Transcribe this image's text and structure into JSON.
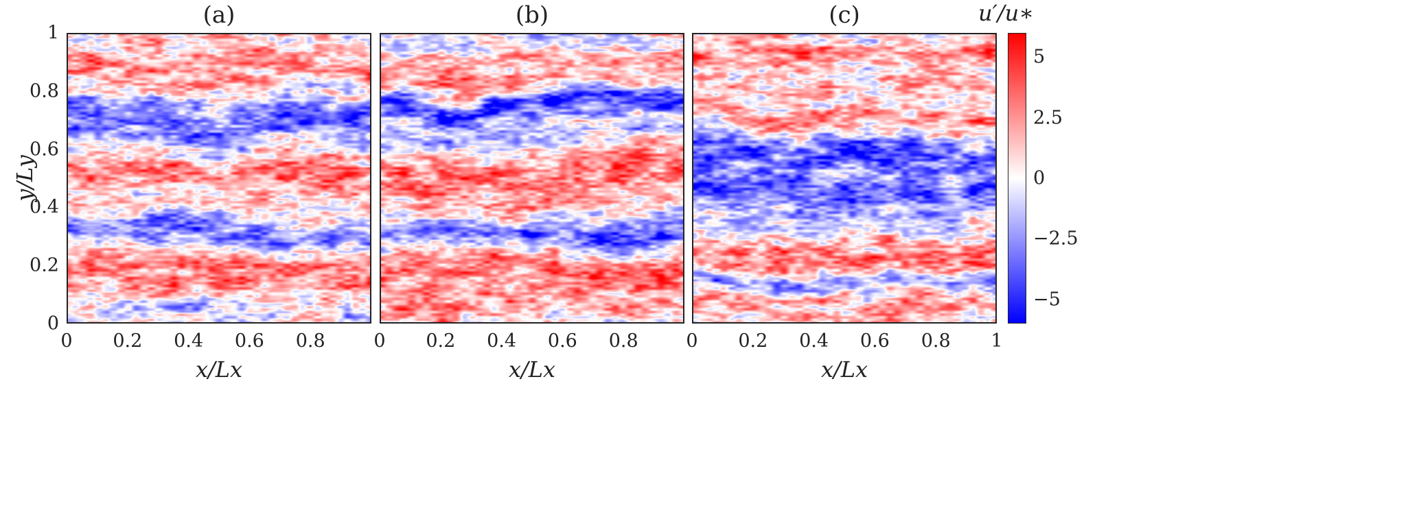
{
  "chart_data": {
    "type": "heatmap",
    "colorbar": {
      "label": "u′/u∗",
      "range": [
        -6,
        6
      ],
      "ticks": [
        5,
        2.5,
        0,
        -2.5,
        -5
      ],
      "tick_labels": [
        "5",
        "2.5",
        "0",
        "−2.5",
        "−5"
      ],
      "colors": {
        "low": "#0000ff",
        "mid": "#ffffff",
        "high": "#ff0000"
      }
    },
    "ylabel": "y/Ly",
    "y_ticks": [
      "0",
      "0.2",
      "0.4",
      "0.6",
      "0.8",
      "1"
    ],
    "panels": [
      {
        "title": "(a)",
        "xlabel": "x/Lx",
        "x_ticks": [
          "0",
          "0.2",
          "0.4",
          "0.6",
          "0.8"
        ],
        "xlim": [
          0,
          1
        ],
        "ylim": [
          0,
          1
        ],
        "streaks": [
          {
            "y": 0.9,
            "w": 0.08,
            "v": 2.5
          },
          {
            "y": 0.7,
            "w": 0.07,
            "v": -3.5
          },
          {
            "y": 0.5,
            "w": 0.08,
            "v": 3
          },
          {
            "y": 0.31,
            "w": 0.06,
            "v": -3
          },
          {
            "y": 0.16,
            "w": 0.09,
            "v": 3
          },
          {
            "y": 0.04,
            "w": 0.03,
            "v": -1.5
          }
        ]
      },
      {
        "title": "(b)",
        "xlabel": "x/Lx",
        "x_ticks": [
          "0",
          "0.2",
          "0.4",
          "0.6",
          "0.8"
        ],
        "xlim": [
          0,
          1
        ],
        "ylim": [
          0,
          1
        ],
        "streaks": [
          {
            "y": 0.88,
            "w": 0.07,
            "v": 2.5
          },
          {
            "y": 0.75,
            "w": 0.04,
            "v": -5
          },
          {
            "y": 0.65,
            "w": 0.04,
            "v": -1.5
          },
          {
            "y": 0.51,
            "w": 0.09,
            "v": 3.2
          },
          {
            "y": 0.31,
            "w": 0.05,
            "v": -4
          },
          {
            "y": 0.17,
            "w": 0.07,
            "v": 3
          },
          {
            "y": 0.05,
            "w": 0.05,
            "v": 2
          }
        ]
      },
      {
        "title": "(c)",
        "xlabel": "x/Lx",
        "x_ticks": [
          "0",
          "0.2",
          "0.4",
          "0.6",
          "0.8",
          "1"
        ],
        "xlim": [
          0,
          1
        ],
        "ylim": [
          0,
          1
        ],
        "streaks": [
          {
            "y": 0.93,
            "w": 0.05,
            "v": 3
          },
          {
            "y": 0.8,
            "w": 0.04,
            "v": 1.5
          },
          {
            "y": 0.71,
            "w": 0.04,
            "v": 2.5
          },
          {
            "y": 0.6,
            "w": 0.06,
            "v": -3.5
          },
          {
            "y": 0.47,
            "w": 0.07,
            "v": -3.5
          },
          {
            "y": 0.37,
            "w": 0.03,
            "v": -1
          },
          {
            "y": 0.22,
            "w": 0.06,
            "v": 3.5
          },
          {
            "y": 0.12,
            "w": 0.03,
            "v": -2.5
          },
          {
            "y": 0.04,
            "w": 0.04,
            "v": 2.5
          }
        ]
      }
    ]
  }
}
